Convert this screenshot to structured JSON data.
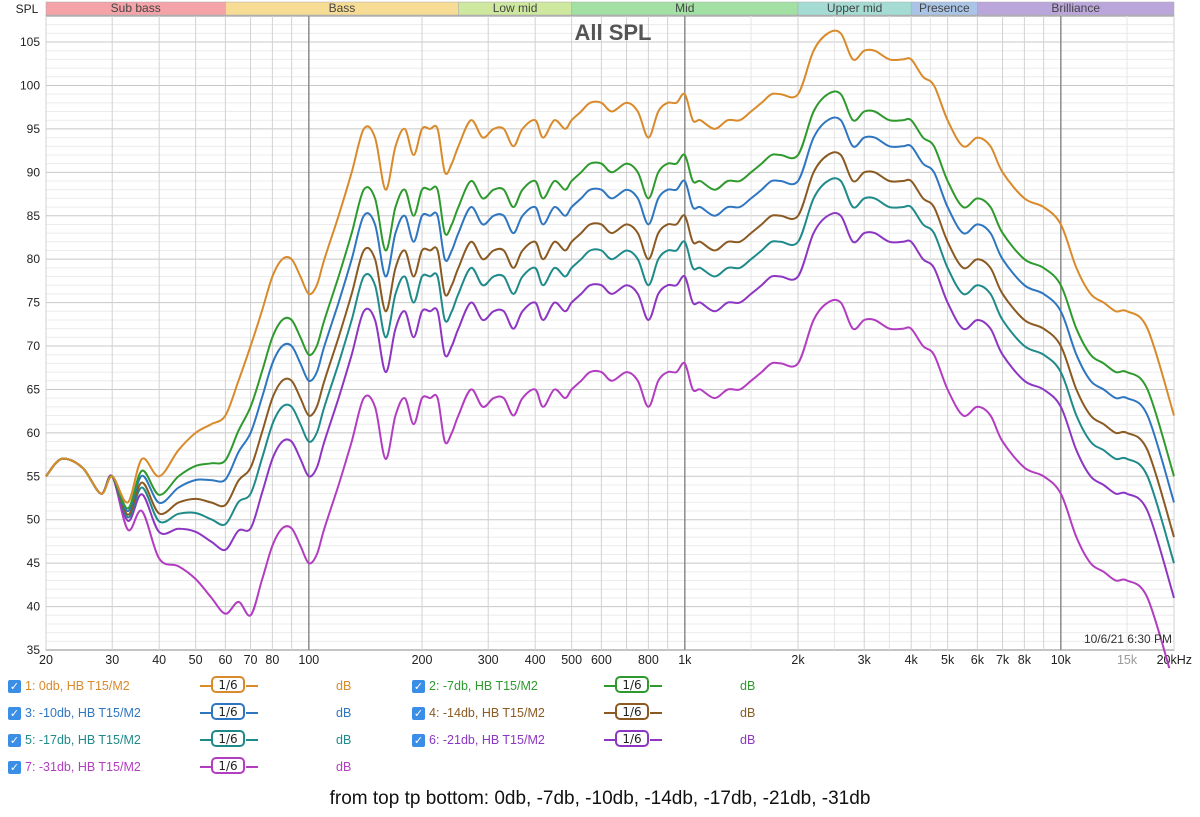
{
  "chart_data": {
    "type": "line",
    "title": "All SPL",
    "ylabel": "SPL",
    "xscale": "log",
    "xlim": [
      20,
      20000
    ],
    "ylim": [
      35,
      108
    ],
    "y_ticks": [
      35,
      40,
      45,
      50,
      55,
      60,
      65,
      70,
      75,
      80,
      85,
      90,
      95,
      100,
      105
    ],
    "x_ticks": [
      {
        "v": 20,
        "t": "20"
      },
      {
        "v": 30,
        "t": "30"
      },
      {
        "v": 40,
        "t": "40"
      },
      {
        "v": 50,
        "t": "50"
      },
      {
        "v": 60,
        "t": "60"
      },
      {
        "v": 70,
        "t": "70"
      },
      {
        "v": 80,
        "t": "80"
      },
      {
        "v": 100,
        "t": "100"
      },
      {
        "v": 200,
        "t": "200"
      },
      {
        "v": 300,
        "t": "300"
      },
      {
        "v": 400,
        "t": "400"
      },
      {
        "v": 500,
        "t": "500"
      },
      {
        "v": 600,
        "t": "600"
      },
      {
        "v": 800,
        "t": "800"
      },
      {
        "v": 1000,
        "t": "1k"
      },
      {
        "v": 2000,
        "t": "2k"
      },
      {
        "v": 3000,
        "t": "3k"
      },
      {
        "v": 4000,
        "t": "4k"
      },
      {
        "v": 5000,
        "t": "5k"
      },
      {
        "v": 6000,
        "t": "6k"
      },
      {
        "v": 7000,
        "t": "7k"
      },
      {
        "v": 8000,
        "t": "8k"
      },
      {
        "v": 10000,
        "t": "10k"
      },
      {
        "v": 15000,
        "t": "15k"
      },
      {
        "v": 20000,
        "t": "20kHz"
      }
    ],
    "bands": [
      {
        "name": "Sub bass",
        "from": 20,
        "to": 60,
        "color": "#f4a3a8"
      },
      {
        "name": "Bass",
        "from": 60,
        "to": 250,
        "color": "#f7dc95"
      },
      {
        "name": "Low mid",
        "from": 250,
        "to": 500,
        "color": "#cfe8a0"
      },
      {
        "name": "Mid",
        "from": 500,
        "to": 2000,
        "color": "#a2e0a4"
      },
      {
        "name": "Upper mid",
        "from": 2000,
        "to": 4000,
        "color": "#a4dcd4"
      },
      {
        "name": "Presence",
        "from": 4000,
        "to": 6000,
        "color": "#a9c4e6"
      },
      {
        "name": "Brilliance",
        "from": 6000,
        "to": 20000,
        "color": "#bba6dc"
      }
    ],
    "timestamp": "10/6/21 6:30 PM",
    "base_curve": {
      "x": [
        20,
        22,
        25,
        28,
        30,
        33,
        36,
        40,
        45,
        50,
        55,
        60,
        65,
        70,
        75,
        80,
        85,
        90,
        95,
        100,
        105,
        110,
        120,
        130,
        140,
        150,
        160,
        170,
        180,
        190,
        200,
        210,
        220,
        230,
        240,
        250,
        270,
        290,
        310,
        330,
        350,
        370,
        400,
        420,
        450,
        480,
        500,
        530,
        560,
        600,
        640,
        700,
        750,
        800,
        850,
        900,
        950,
        1000,
        1050,
        1100,
        1200,
        1300,
        1400,
        1500,
        1600,
        1700,
        1800,
        2000,
        2200,
        2400,
        2600,
        2800,
        3000,
        3200,
        3500,
        3800,
        4000,
        4300,
        4600,
        5000,
        5500,
        6000,
        6500,
        7000,
        8000,
        9000,
        10000,
        11000,
        12000,
        13000,
        14000,
        15000,
        17000,
        20000
      ],
      "y": [
        55,
        57,
        56,
        53,
        55,
        52,
        57,
        55,
        58,
        60,
        61,
        62,
        66,
        70,
        74,
        78,
        80,
        80,
        78,
        76,
        77,
        80,
        85,
        90,
        95,
        94,
        88,
        93,
        95,
        92,
        95,
        95,
        95,
        90,
        91,
        93,
        96,
        94,
        95,
        95,
        93,
        95,
        96,
        94,
        96,
        95,
        96,
        97,
        98,
        98,
        97,
        98,
        97,
        94,
        97,
        98,
        98,
        99,
        96,
        96,
        95,
        96,
        96,
        97,
        98,
        99,
        99,
        99,
        104,
        106,
        106,
        103,
        104,
        104,
        103,
        103,
        103,
        101,
        100,
        96,
        93,
        94,
        93,
        90,
        87,
        86,
        84,
        79,
        76,
        75,
        74,
        74,
        72,
        62
      ]
    },
    "series": [
      {
        "name": "1: 0db, HB T15/M2",
        "offset": 0,
        "color": "#d98a2b"
      },
      {
        "name": "2: -7db, HB T15/M2",
        "offset": -7,
        "color": "#2e9a2e"
      },
      {
        "name": "3: -10db, HB T15/M2",
        "offset": -10,
        "color": "#2e76c0"
      },
      {
        "name": "4: -14db, HB T15/M2",
        "offset": -14,
        "color": "#8a5a22"
      },
      {
        "name": "5: -17db, HB T15/M2",
        "offset": -17,
        "color": "#1f8a8a"
      },
      {
        "name": "6: -21db, HB T15/M2",
        "offset": -21,
        "color": "#8d36c2"
      },
      {
        "name": "7: -31db, HB T15/M2",
        "offset": -31,
        "color": "#b33dc0"
      }
    ]
  },
  "legend": {
    "check": "✓",
    "smoothing": "1/6",
    "unit": "dB",
    "items": [
      {
        "label": "1: 0db, HB T15/M2",
        "color": "#d98a2b"
      },
      {
        "label": "2: -7db, HB T15/M2",
        "color": "#2e9a2e"
      },
      {
        "label": "3: -10db, HB T15/M2",
        "color": "#2e76c0"
      },
      {
        "label": "4: -14db, HB T15/M2",
        "color": "#8a5a22"
      },
      {
        "label": "5: -17db, HB T15/M2",
        "color": "#1f8a8a"
      },
      {
        "label": "6: -21db, HB T15/M2",
        "color": "#8d36c2"
      },
      {
        "label": "7: -31db, HB T15/M2",
        "color": "#b33dc0"
      }
    ]
  },
  "caption": "from top tp bottom: 0db, -7db, -10db, -14db, -17db, -21db, -31db"
}
